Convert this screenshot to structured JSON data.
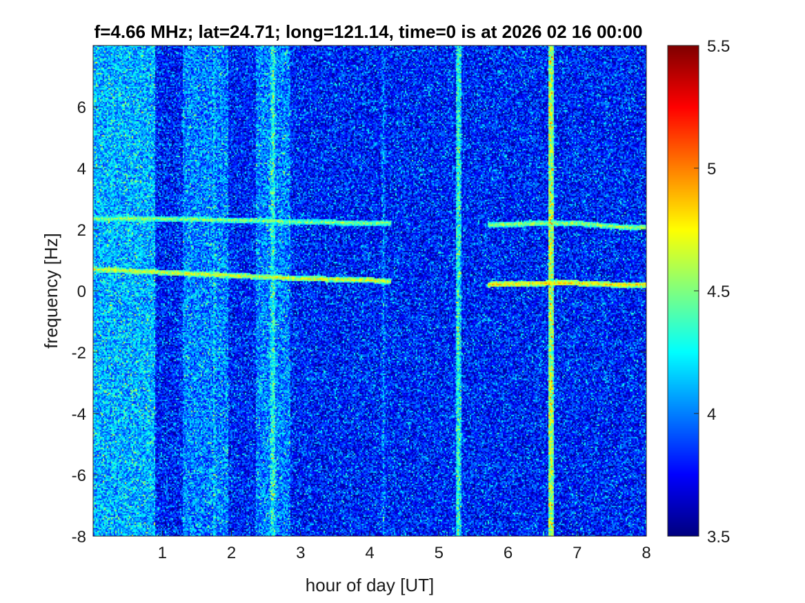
{
  "chart_data": {
    "type": "heatmap",
    "title": "f=4.66 MHz;  lat=24.71; long=121.14, time=0 is at 2026 02 16 00:00",
    "xlabel": "hour of day [UT]",
    "ylabel": "frequency [Hz]",
    "xlim": [
      0,
      8
    ],
    "ylim": [
      -8,
      8
    ],
    "xticks": [
      1,
      2,
      3,
      4,
      5,
      6,
      7,
      8
    ],
    "yticks": [
      -8,
      -6,
      -4,
      -2,
      0,
      2,
      4,
      6
    ],
    "xtick_labels": [
      "1",
      "2",
      "3",
      "4",
      "5",
      "6",
      "7",
      "8"
    ],
    "ytick_labels": [
      "-8",
      "-6",
      "-4",
      "-2",
      "0",
      "2",
      "4",
      "6"
    ],
    "colorbar": {
      "min": 3.5,
      "max": 5.5,
      "ticks": [
        3.5,
        4,
        4.5,
        5,
        5.5
      ],
      "tick_labels": [
        "3.5",
        "4",
        "4.5",
        "5",
        "5.5"
      ],
      "colormap": "jet"
    },
    "grid": false,
    "background_level": 3.75,
    "bright_periods": [
      {
        "x_start": 0.0,
        "x_end": 0.9,
        "level": 4.05
      },
      {
        "x_start": 1.3,
        "x_end": 1.95,
        "level": 3.95
      },
      {
        "x_start": 2.35,
        "x_end": 2.85,
        "level": 3.95
      }
    ],
    "vertical_streaks": [
      {
        "x": 1.75,
        "level": 4.1
      },
      {
        "x": 2.6,
        "level": 4.3
      },
      {
        "x": 4.2,
        "level": 3.95
      },
      {
        "x": 5.28,
        "level": 4.3
      },
      {
        "x": 6.62,
        "level": 4.6
      }
    ],
    "traces": [
      {
        "x": [
          0.0,
          1.0,
          2.0,
          3.0,
          4.0,
          4.3
        ],
        "y": [
          2.35,
          2.35,
          2.3,
          2.25,
          2.2,
          2.2
        ],
        "level": 4.55
      },
      {
        "x": [
          5.7,
          6.6,
          7.0,
          7.5,
          8.0
        ],
        "y": [
          2.15,
          2.2,
          2.2,
          2.1,
          2.05
        ],
        "level": 4.6
      },
      {
        "x": [
          0.0,
          1.0,
          2.0,
          3.0,
          4.0,
          4.3
        ],
        "y": [
          0.7,
          0.6,
          0.5,
          0.4,
          0.35,
          0.3
        ],
        "level": 4.7
      },
      {
        "x": [
          5.7,
          6.6,
          7.0,
          7.5,
          8.0
        ],
        "y": [
          0.2,
          0.25,
          0.25,
          0.2,
          0.2
        ],
        "level": 4.8
      }
    ]
  }
}
